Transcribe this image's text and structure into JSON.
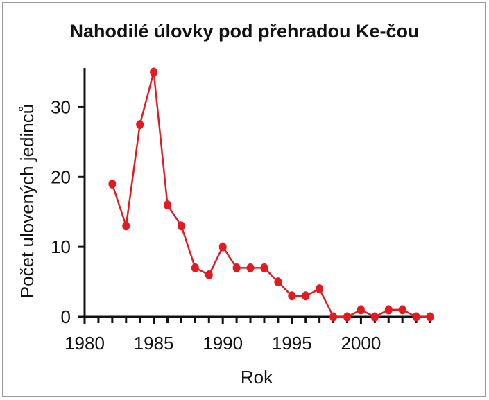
{
  "chart_data": {
    "type": "line",
    "title": "Nahodilé úlovky pod přehradou Ke-čou",
    "xlabel": "Rok",
    "ylabel": "Počet ulovených jedinců",
    "xlim": [
      1980,
      2005
    ],
    "ylim": [
      0,
      35
    ],
    "x_ticks": [
      1980,
      1985,
      1990,
      1995,
      2000
    ],
    "y_ticks": [
      0,
      10,
      20,
      30
    ],
    "grid": false,
    "legend": "none",
    "series": [
      {
        "color": "#e01b22",
        "x": [
          1982,
          1983,
          1984,
          1985,
          1986,
          1987,
          1988,
          1989,
          1990,
          1991,
          1992,
          1993,
          1994,
          1995,
          1996,
          1997,
          1998,
          1999,
          2000,
          2001,
          2002,
          2003,
          2004,
          2005
        ],
        "y": [
          19,
          13,
          27.5,
          35,
          16,
          13,
          7,
          6,
          10,
          7,
          7,
          7,
          5,
          3,
          3,
          4,
          0,
          0,
          1,
          0,
          1,
          1,
          0,
          0
        ]
      }
    ]
  }
}
